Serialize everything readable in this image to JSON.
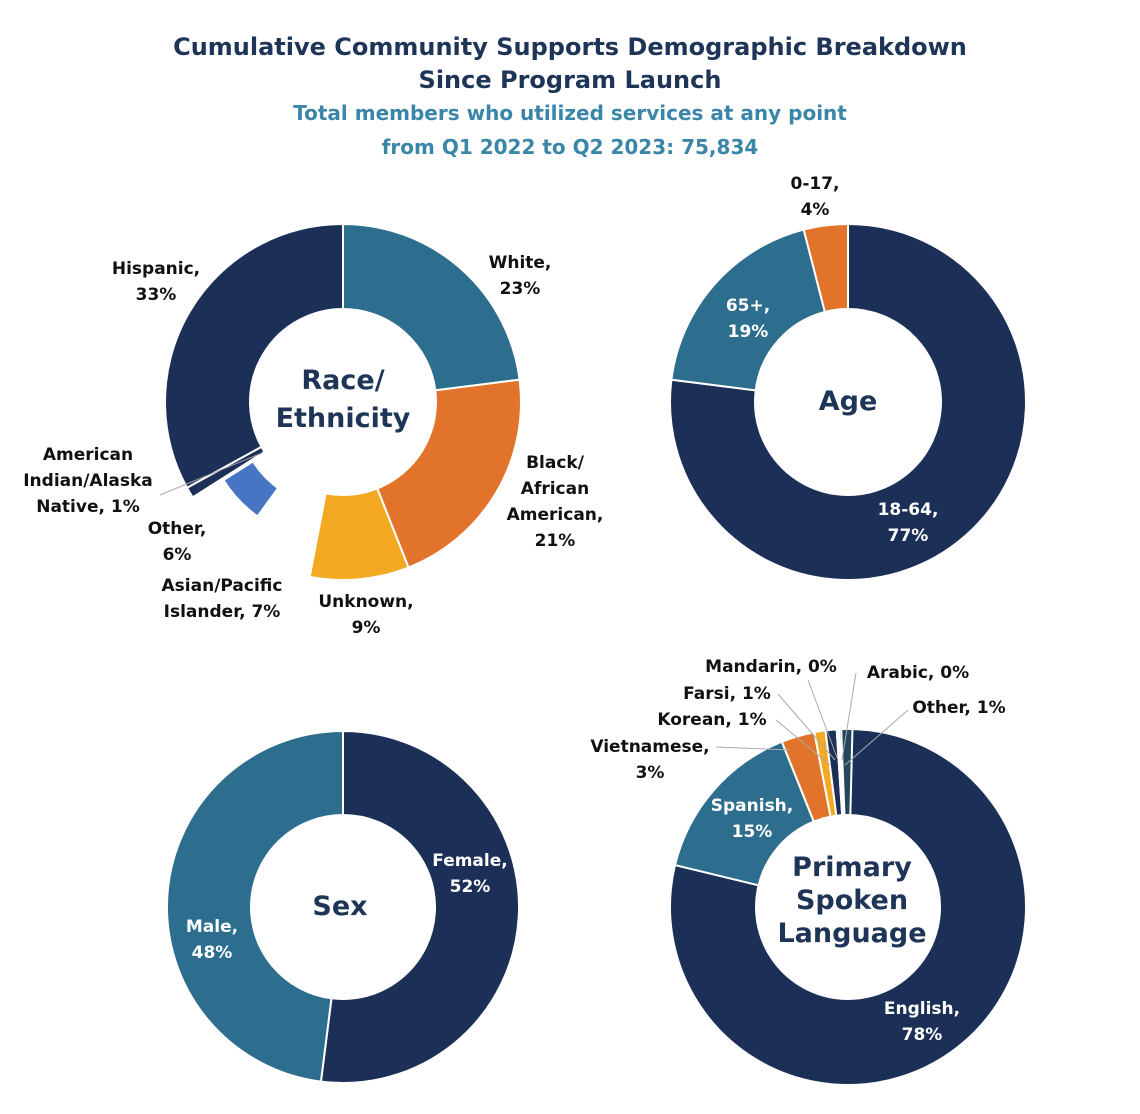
{
  "title_line1": "Cumulative Community Supports Demographic Breakdown",
  "title_line2": "Since Program Launch",
  "subtitle_line1": "Total members who utilized services at any point",
  "subtitle_line2": "from Q1 2022 to Q2 2023: 75,834",
  "colors": {
    "navy": "#1b2f57",
    "teal": "#2d6e8e",
    "orange": "#e2732a",
    "yellow": "#f4a923",
    "lightblue": "#4775c4"
  },
  "chart_data": [
    {
      "type": "pie",
      "variant": "donut",
      "center_label": "Race/ Ethnicity",
      "start": "top",
      "direction": "clockwise",
      "categories": [
        "White",
        "Black/ African American",
        "Unknown",
        "Asian/Pacific Islander",
        "Other",
        "American Indian/Alaska Native",
        "Hispanic"
      ],
      "values": [
        23,
        21,
        9,
        7,
        6,
        1,
        33
      ],
      "unit": "%",
      "colors": [
        "#2d6e8e",
        "#e2732a",
        "#f4a923",
        "#ffffff",
        "#4775c4",
        "#1b2f57",
        "#1b2f57"
      ],
      "labels": [
        "White, 23%",
        "Black/ African American, 21%",
        "Unknown, 9%",
        "Asian/Pacific Islander, 7%",
        "Other, 6%",
        "American Indian/Alaska Native, 1%",
        "Hispanic, 33%"
      ]
    },
    {
      "type": "pie",
      "variant": "donut",
      "center_label": "Age",
      "start": "top",
      "direction": "clockwise",
      "categories": [
        "18-64",
        "65+",
        "0-17"
      ],
      "values": [
        77,
        19,
        4
      ],
      "unit": "%",
      "colors": [
        "#1b2f57",
        "#2d6e8e",
        "#e2732a"
      ],
      "labels": [
        "18-64, 77%",
        "65+, 19%",
        "0-17, 4%"
      ]
    },
    {
      "type": "pie",
      "variant": "donut",
      "center_label": "Sex",
      "start": "top",
      "direction": "clockwise",
      "categories": [
        "Female",
        "Male"
      ],
      "values": [
        52,
        48
      ],
      "unit": "%",
      "colors": [
        "#1b2f57",
        "#2d6e8e"
      ],
      "labels": [
        "Female, 52%",
        "Male, 48%"
      ]
    },
    {
      "type": "pie",
      "variant": "donut",
      "center_label": "Primary Spoken Language",
      "start": "top",
      "direction": "clockwise",
      "categories": [
        "English",
        "Spanish",
        "Vietnamese",
        "Korean",
        "Farsi",
        "Mandarin",
        "Arabic",
        "Other"
      ],
      "values": [
        78,
        15,
        3,
        1,
        1,
        0,
        0,
        1
      ],
      "unit": "%",
      "colors": [
        "#1b2f57",
        "#2d6e8e",
        "#e2732a",
        "#f4a923",
        "#1b2f57",
        "#2d6e8e",
        "#1b2f57",
        "#24475e"
      ],
      "labels": [
        "English, 78%",
        "Spanish, 15%",
        "Vietnamese, 3%",
        "Korean, 1%",
        "Farsi, 1%",
        "Mandarin, 0%",
        "Arabic, 0%",
        "Other, 1%"
      ]
    }
  ]
}
